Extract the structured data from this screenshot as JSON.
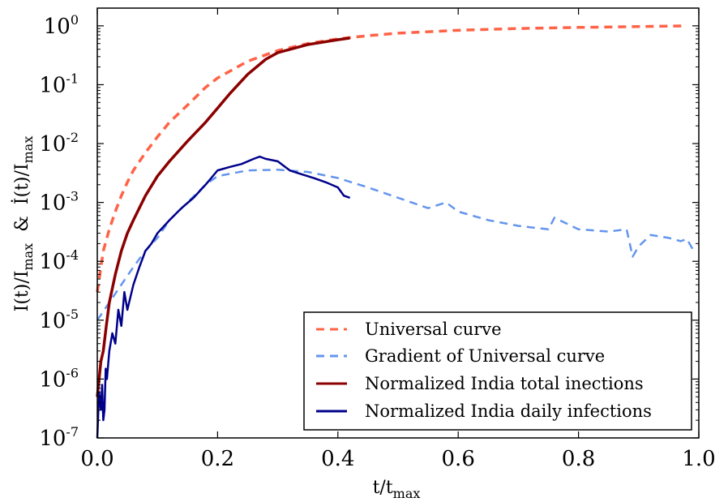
{
  "chart_data": {
    "type": "line",
    "title": "",
    "xlabel": {
      "base": "t/t",
      "sub": "max"
    },
    "ylabel": {
      "part1_base": "I(t)/I",
      "part1_sub": "max",
      "amp": "&",
      "part2_base": "İ(t)/I",
      "part2_sub": "max"
    },
    "xscale": "linear",
    "yscale": "log",
    "xlim": [
      0.0,
      1.0
    ],
    "ylim": [
      1e-07,
      2
    ],
    "grid": false,
    "legend_position": "lower-right",
    "x_ticks": [
      {
        "value": 0.0,
        "label": "0.0"
      },
      {
        "value": 0.2,
        "label": "0.2"
      },
      {
        "value": 0.4,
        "label": "0.4"
      },
      {
        "value": 0.6,
        "label": "0.6"
      },
      {
        "value": 0.8,
        "label": "0.8"
      },
      {
        "value": 1.0,
        "label": "1.0"
      }
    ],
    "y_ticks": [
      {
        "value": 1e-07,
        "base": "10",
        "exp": "-7"
      },
      {
        "value": 1e-06,
        "base": "10",
        "exp": "-6"
      },
      {
        "value": 1e-05,
        "base": "10",
        "exp": "-5"
      },
      {
        "value": 0.0001,
        "base": "10",
        "exp": "-4"
      },
      {
        "value": 0.001,
        "base": "10",
        "exp": "-3"
      },
      {
        "value": 0.01,
        "base": "10",
        "exp": "-2"
      },
      {
        "value": 0.1,
        "base": "10",
        "exp": "-1"
      },
      {
        "value": 1,
        "base": "10",
        "exp": "0"
      }
    ],
    "series": [
      {
        "name": "Universal curve",
        "color": "#ff6347",
        "style": "dashed",
        "x": [
          0.0,
          0.01,
          0.02,
          0.03,
          0.04,
          0.05,
          0.06,
          0.08,
          0.1,
          0.12,
          0.15,
          0.18,
          0.2,
          0.25,
          0.3,
          0.35,
          0.4,
          0.45,
          0.5,
          0.6,
          0.7,
          0.8,
          0.9,
          0.98
        ],
        "y": [
          3e-05,
          0.00015,
          0.00035,
          0.0007,
          0.0013,
          0.0022,
          0.0035,
          0.007,
          0.013,
          0.023,
          0.045,
          0.09,
          0.13,
          0.25,
          0.38,
          0.5,
          0.6,
          0.68,
          0.75,
          0.84,
          0.9,
          0.94,
          0.97,
          1.0
        ]
      },
      {
        "name": "Gradient of Universal curve",
        "color": "#6495ed",
        "style": "dashed",
        "x": [
          0.0,
          0.02,
          0.04,
          0.06,
          0.08,
          0.1,
          0.12,
          0.15,
          0.18,
          0.2,
          0.25,
          0.3,
          0.35,
          0.4,
          0.45,
          0.5,
          0.55,
          0.58,
          0.6,
          0.65,
          0.7,
          0.75,
          0.76,
          0.8,
          0.85,
          0.88,
          0.89,
          0.9,
          0.92,
          0.95,
          0.97,
          0.98,
          0.99
        ],
        "y": [
          1e-05,
          2e-05,
          4e-05,
          8e-05,
          0.00015,
          0.00025,
          0.0005,
          0.001,
          0.002,
          0.0028,
          0.0035,
          0.0036,
          0.0033,
          0.0026,
          0.0018,
          0.0012,
          0.0008,
          0.001,
          0.0007,
          0.0005,
          0.0004,
          0.00035,
          0.00055,
          0.00035,
          0.00032,
          0.00035,
          0.00012,
          0.00018,
          0.00028,
          0.00025,
          0.00022,
          0.00024,
          0.00016
        ]
      },
      {
        "name": "Normalized India total inections",
        "color": "#8b0000",
        "style": "solid",
        "x": [
          0.0,
          0.003,
          0.006,
          0.01,
          0.015,
          0.02,
          0.03,
          0.04,
          0.05,
          0.06,
          0.08,
          0.1,
          0.12,
          0.15,
          0.18,
          0.2,
          0.22,
          0.25,
          0.28,
          0.3,
          0.35,
          0.4,
          0.42
        ],
        "y": [
          5e-07,
          1e-06,
          2e-06,
          3e-06,
          8e-06,
          2e-05,
          6e-05,
          0.00015,
          0.0003,
          0.0005,
          0.0013,
          0.0028,
          0.005,
          0.011,
          0.023,
          0.04,
          0.07,
          0.15,
          0.27,
          0.35,
          0.48,
          0.58,
          0.62
        ]
      },
      {
        "name": "Normalized India daily infections",
        "color": "#00008b",
        "style": "solid",
        "x": [
          0.0,
          0.003,
          0.006,
          0.008,
          0.01,
          0.012,
          0.014,
          0.016,
          0.02,
          0.025,
          0.03,
          0.035,
          0.04,
          0.045,
          0.05,
          0.06,
          0.07,
          0.08,
          0.09,
          0.1,
          0.12,
          0.14,
          0.16,
          0.18,
          0.2,
          0.22,
          0.24,
          0.26,
          0.27,
          0.28,
          0.3,
          0.32,
          0.34,
          0.36,
          0.38,
          0.4,
          0.41,
          0.42
        ],
        "y": [
          1e-07,
          6e-07,
          3e-07,
          8e-07,
          2e-07,
          3e-07,
          1.5e-06,
          1e-06,
          3e-06,
          6e-06,
          4e-06,
          1.5e-05,
          8e-06,
          3e-05,
          1.5e-05,
          4e-05,
          8e-05,
          0.00015,
          0.0002,
          0.0003,
          0.0005,
          0.0008,
          0.0012,
          0.002,
          0.0035,
          0.004,
          0.0045,
          0.0055,
          0.006,
          0.0055,
          0.005,
          0.0035,
          0.003,
          0.0026,
          0.0022,
          0.0018,
          0.0013,
          0.0012
        ]
      }
    ]
  }
}
